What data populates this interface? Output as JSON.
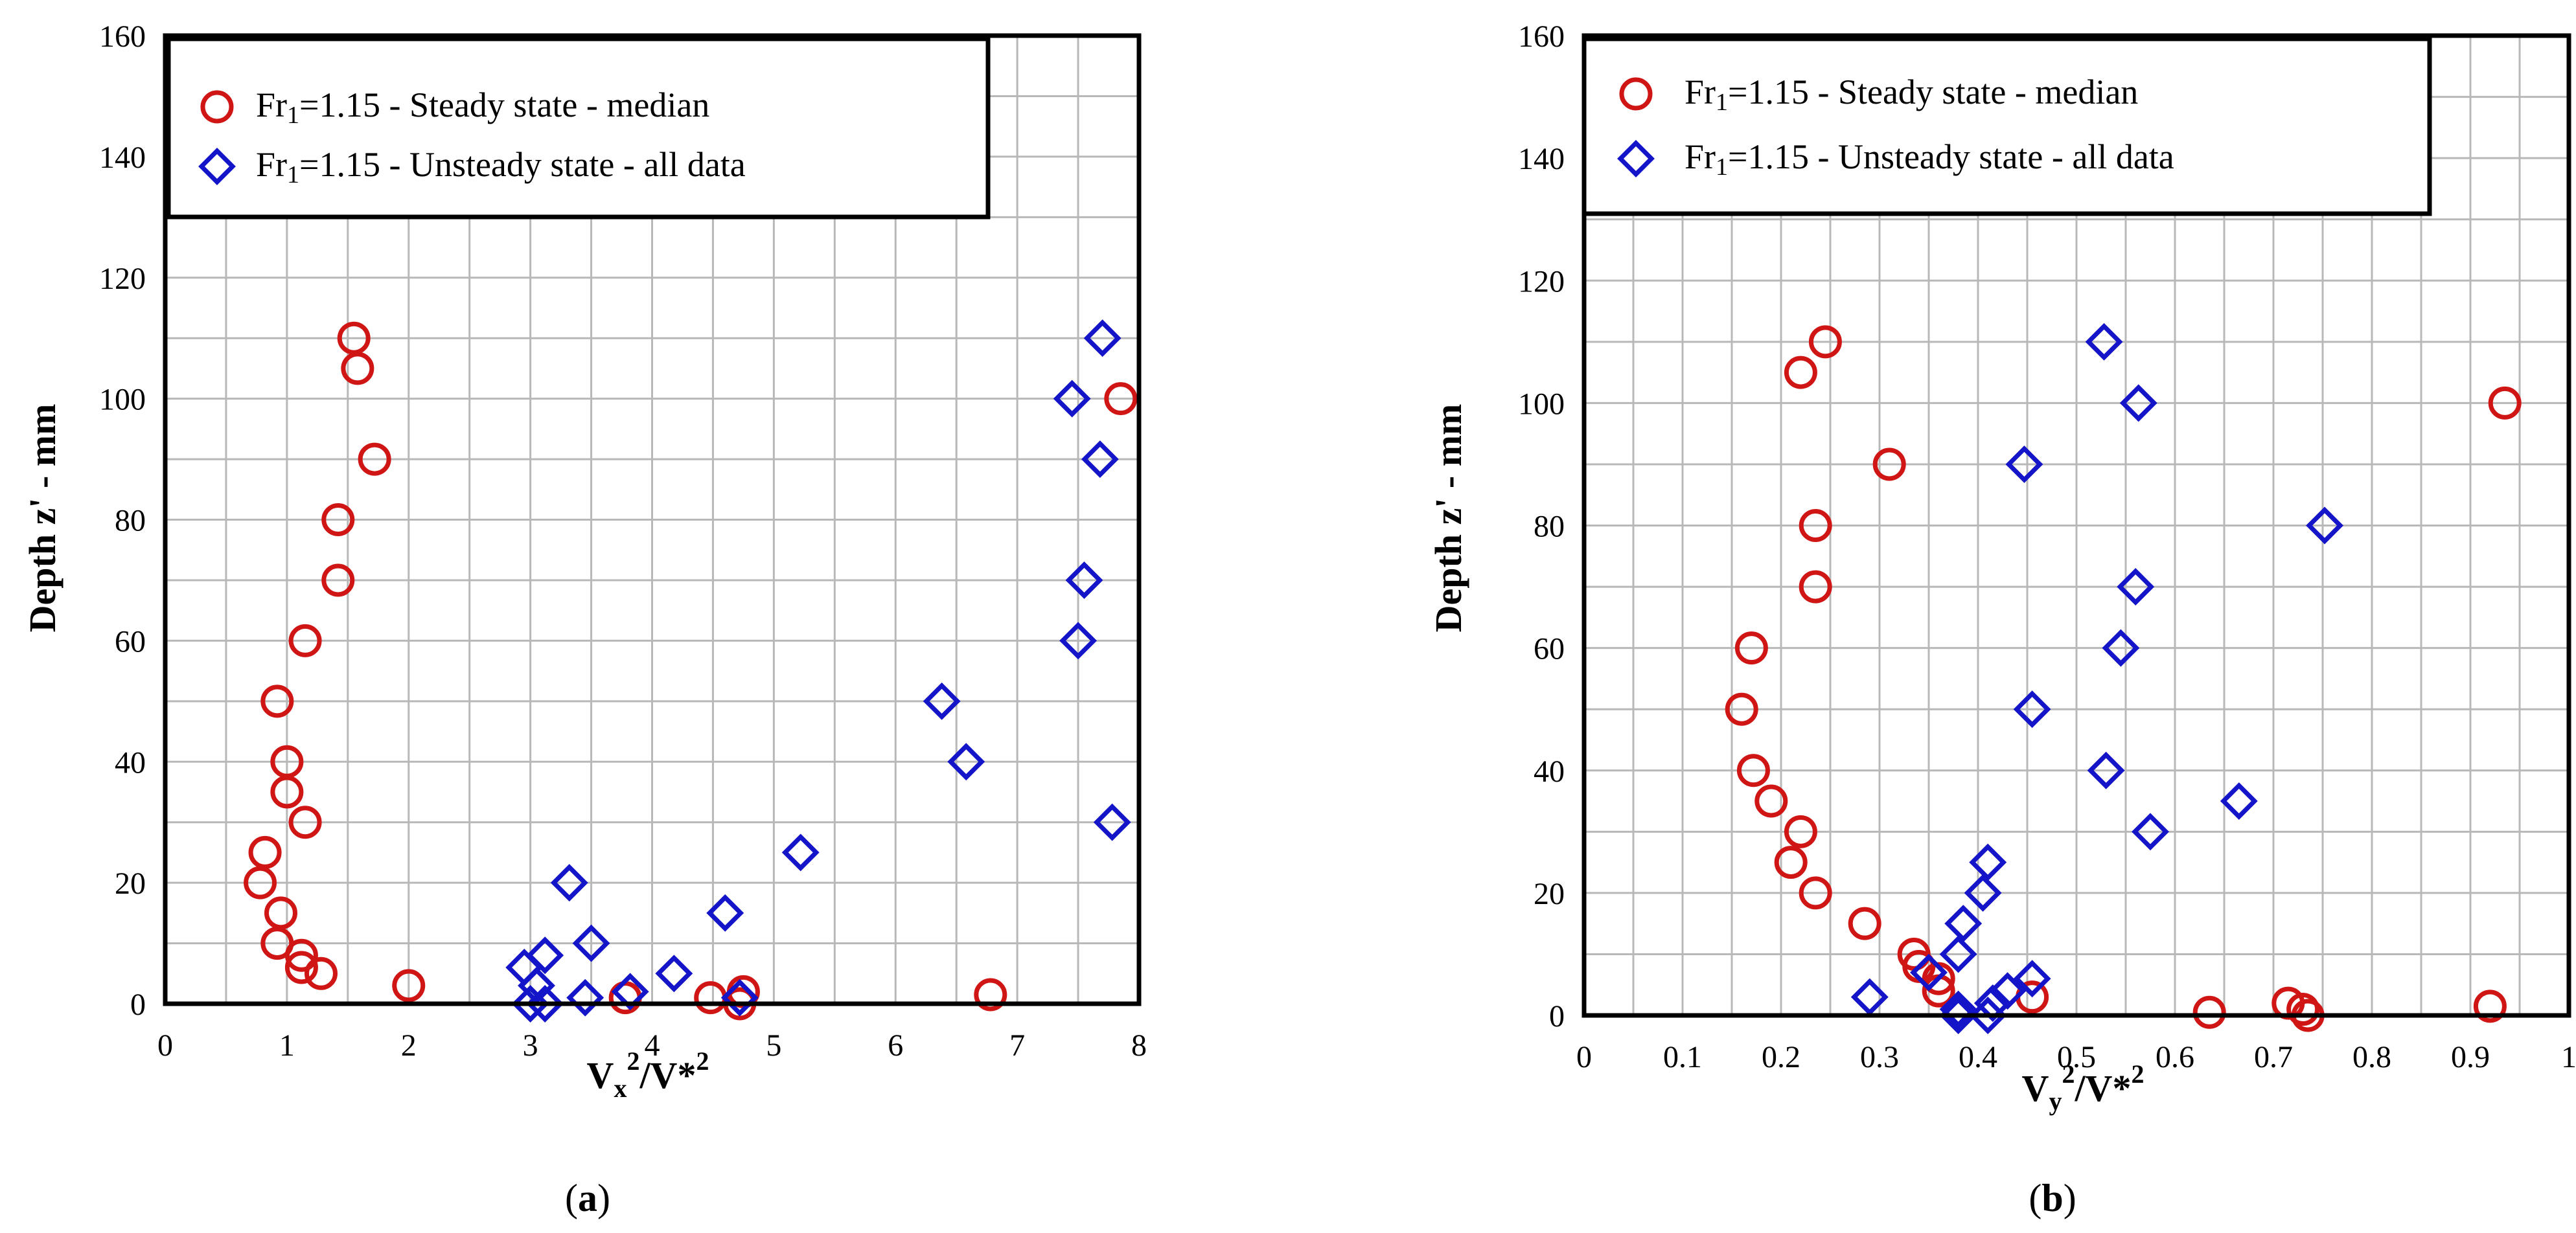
{
  "colors": {
    "steady": "#d01515",
    "unsteady": "#1414c8"
  },
  "chart_data": [
    {
      "type": "scatter",
      "panel_label": "(a)",
      "panel_letter": "a",
      "ylabel": "Depth z' - mm",
      "xlabel": {
        "main": "V",
        "sub": "x",
        "sup1": "2",
        "rest": "/V*",
        "sup2": "2"
      },
      "xlim": [
        0,
        8
      ],
      "ylim": [
        0,
        160
      ],
      "xticks": [
        0,
        1,
        2,
        3,
        4,
        5,
        6,
        7,
        8
      ],
      "xtick_labels": [
        "0",
        "1",
        "2",
        "3",
        "4",
        "5",
        "6",
        "7",
        "8"
      ],
      "yticks": [
        0,
        20,
        40,
        60,
        80,
        100,
        120,
        140,
        160
      ],
      "ytick_labels": [
        "0",
        "20",
        "40",
        "60",
        "80",
        "100",
        "120",
        "140",
        "160"
      ],
      "xgrid_step": 0.5,
      "ygrid_step": 10,
      "legend": [
        {
          "pre": "Fr",
          "sub": "1",
          "post": "=1.15 - Steady state - median",
          "marker": "circle"
        },
        {
          "pre": "Fr",
          "sub": "1",
          "post": "=1.15 - Unsteady state - all data",
          "marker": "diamond"
        }
      ],
      "series": [
        {
          "name": "Fr1=1.15 - Steady state - median",
          "marker": "circle",
          "points": [
            [
              1.55,
              110
            ],
            [
              1.58,
              105
            ],
            [
              1.72,
              90
            ],
            [
              1.42,
              80
            ],
            [
              1.42,
              70
            ],
            [
              1.15,
              60
            ],
            [
              0.92,
              50
            ],
            [
              1.0,
              40
            ],
            [
              1.0,
              35
            ],
            [
              1.15,
              30
            ],
            [
              0.82,
              25
            ],
            [
              0.78,
              20
            ],
            [
              0.95,
              15
            ],
            [
              0.92,
              10
            ],
            [
              1.12,
              8
            ],
            [
              1.12,
              6
            ],
            [
              1.28,
              5
            ],
            [
              2.0,
              3
            ],
            [
              3.78,
              1
            ],
            [
              4.48,
              1
            ],
            [
              4.72,
              0
            ],
            [
              4.75,
              2
            ],
            [
              6.78,
              1.5
            ],
            [
              7.85,
              100
            ]
          ]
        },
        {
          "name": "Fr1=1.15 - Unsteady state - all data",
          "marker": "diamond",
          "points": [
            [
              7.7,
              110
            ],
            [
              7.45,
              100
            ],
            [
              7.68,
              90
            ],
            [
              7.55,
              70
            ],
            [
              7.5,
              60
            ],
            [
              6.38,
              50
            ],
            [
              6.58,
              40
            ],
            [
              7.78,
              30
            ],
            [
              5.22,
              25
            ],
            [
              3.32,
              20
            ],
            [
              4.6,
              15
            ],
            [
              3.5,
              10
            ],
            [
              3.12,
              8
            ],
            [
              2.95,
              6
            ],
            [
              4.18,
              5
            ],
            [
              3.05,
              3
            ],
            [
              3.82,
              2
            ],
            [
              3.45,
              1
            ],
            [
              3.0,
              0
            ],
            [
              3.12,
              0
            ],
            [
              4.72,
              1
            ]
          ]
        }
      ]
    },
    {
      "type": "scatter",
      "panel_label": "(b)",
      "panel_letter": "b",
      "ylabel": "Depth z' - mm",
      "xlabel": {
        "main": "V",
        "sub": "y",
        "sup1": "2",
        "rest": "/V*",
        "sup2": "2"
      },
      "xlim": [
        0,
        1
      ],
      "ylim": [
        0,
        160
      ],
      "xticks": [
        0,
        0.1,
        0.2,
        0.3,
        0.4,
        0.5,
        0.6,
        0.7,
        0.8,
        0.9,
        1
      ],
      "xtick_labels": [
        "0",
        "0.1",
        "0.2",
        "0.3",
        "0.4",
        "0.5",
        "0.6",
        "0.7",
        "0.8",
        "0.9",
        "1"
      ],
      "yticks": [
        0,
        20,
        40,
        60,
        80,
        100,
        120,
        140,
        160
      ],
      "ytick_labels": [
        "0",
        "20",
        "40",
        "60",
        "80",
        "100",
        "120",
        "140",
        "160"
      ],
      "xgrid_step": 0.05,
      "ygrid_step": 10,
      "legend": [
        {
          "pre": "Fr",
          "sub": "1",
          "post": "=1.15 - Steady state - median",
          "marker": "circle"
        },
        {
          "pre": "Fr",
          "sub": "1",
          "post": "=1.15 - Unsteady state - all data",
          "marker": "diamond"
        }
      ],
      "series": [
        {
          "name": "Fr1=1.15 - Steady state - median",
          "marker": "circle",
          "points": [
            [
              0.245,
              110
            ],
            [
              0.22,
              105
            ],
            [
              0.31,
              90
            ],
            [
              0.235,
              80
            ],
            [
              0.235,
              70
            ],
            [
              0.17,
              60
            ],
            [
              0.16,
              50
            ],
            [
              0.172,
              40
            ],
            [
              0.19,
              35
            ],
            [
              0.22,
              30
            ],
            [
              0.21,
              25
            ],
            [
              0.235,
              20
            ],
            [
              0.285,
              15
            ],
            [
              0.335,
              10
            ],
            [
              0.34,
              8
            ],
            [
              0.36,
              6
            ],
            [
              0.36,
              4
            ],
            [
              0.455,
              3
            ],
            [
              0.635,
              0.5
            ],
            [
              0.715,
              2
            ],
            [
              0.73,
              1
            ],
            [
              0.735,
              0
            ],
            [
              0.92,
              1.5
            ],
            [
              0.935,
              100
            ]
          ]
        },
        {
          "name": "Fr1=1.15 - Unsteady state - all data",
          "marker": "diamond",
          "points": [
            [
              0.528,
              110
            ],
            [
              0.563,
              100
            ],
            [
              0.447,
              90
            ],
            [
              0.752,
              80
            ],
            [
              0.56,
              70
            ],
            [
              0.545,
              60
            ],
            [
              0.455,
              50
            ],
            [
              0.53,
              40
            ],
            [
              0.665,
              35
            ],
            [
              0.575,
              30
            ],
            [
              0.41,
              25
            ],
            [
              0.405,
              20
            ],
            [
              0.385,
              15
            ],
            [
              0.38,
              10
            ],
            [
              0.35,
              7
            ],
            [
              0.455,
              6
            ],
            [
              0.43,
              4
            ],
            [
              0.29,
              3
            ],
            [
              0.415,
              2
            ],
            [
              0.38,
              1
            ],
            [
              0.38,
              0
            ],
            [
              0.41,
              0
            ]
          ]
        }
      ]
    }
  ]
}
